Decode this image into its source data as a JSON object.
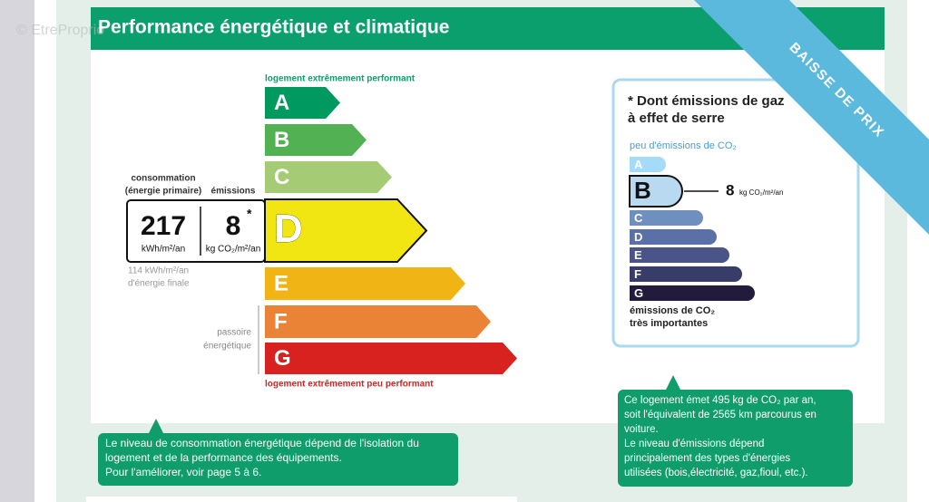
{
  "watermark": "© EtreProprio",
  "header": {
    "title": "Performance énergétique et climatique"
  },
  "ribbon": "BAISSE DE PRIX",
  "energy_label": {
    "top_caption": "logement extrêmement performant",
    "bottom_caption": "logement extrêmement peu performant",
    "classes": [
      "A",
      "B",
      "C",
      "D",
      "E",
      "F",
      "G"
    ],
    "consumption": {
      "header": [
        "consommation",
        "(énergie primaire)"
      ],
      "value": 217,
      "unit": "kWh/m²/an",
      "final": [
        "114 kWh/m²/an",
        "d'énergie finale"
      ]
    },
    "emissions": {
      "header": "émissions",
      "value": 8,
      "mark": "*",
      "unit": "kg CO₂/m²/an"
    },
    "passoire": [
      "passoire",
      "énergétique"
    ]
  },
  "ghg_panel": {
    "title": [
      "* Dont émissions de gaz",
      "à effet de serre"
    ],
    "top_caption": "peu d'émissions de CO₂",
    "classes": [
      "A",
      "B",
      "C",
      "D",
      "E",
      "F",
      "G"
    ],
    "value": 8,
    "unit": "kg CO₂/m²/an",
    "bottom_caption": [
      "émissions de CO₂",
      "très importantes"
    ]
  },
  "callouts": [
    [
      "Le niveau de consommation énergétique dépend de l'isolation du",
      "logement  et de la performance des équipements.",
      "Pour l'améliorer, voir page 5 à 6."
    ],
    [
      "Ce logement émet 495 kg de CO₂ par an,",
      "soit l'équivalent de 2565 km parcourus en",
      "voiture.",
      "Le niveau d'émissions dépend",
      "principalement des types d'énergies",
      "utilisées (bois,électricité, gaz,fioul, etc.)."
    ]
  ]
}
